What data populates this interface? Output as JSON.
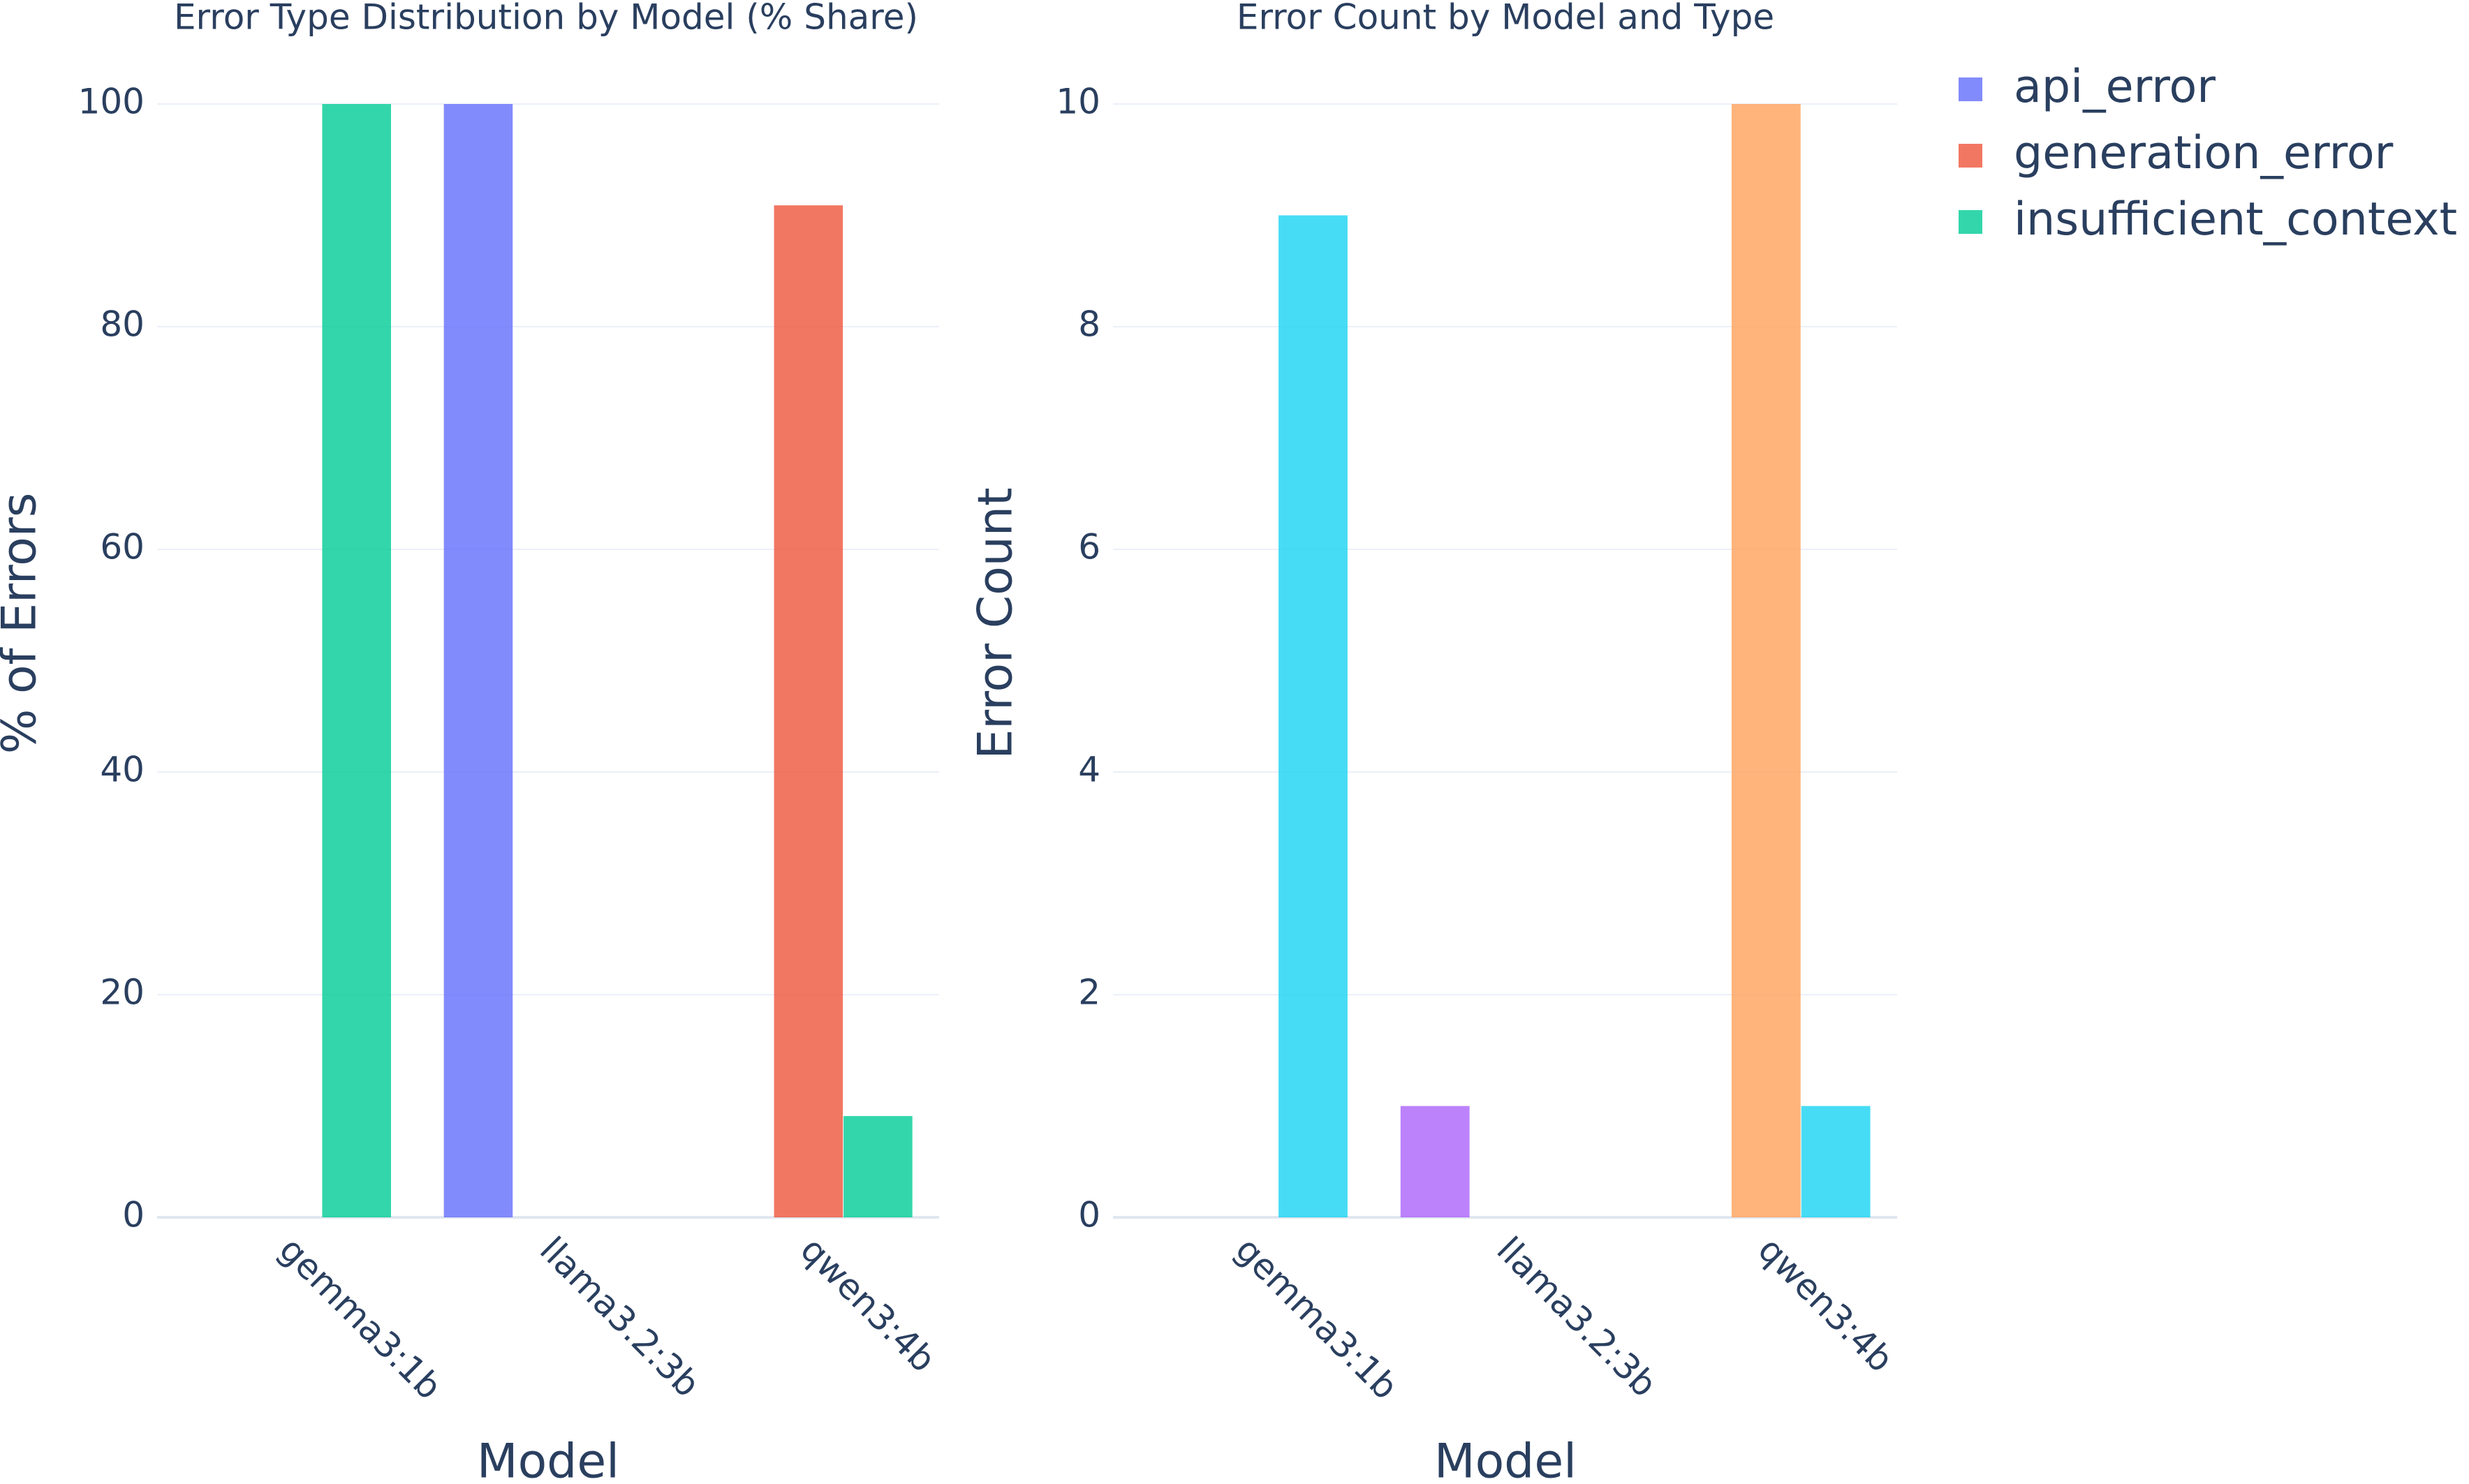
{
  "chart_data": [
    {
      "type": "bar",
      "title": "Error Type Distribution by Model (% Share)",
      "xlabel": "Model",
      "ylabel": "% of Errors",
      "categories": [
        "gemma3:1b",
        "llama3.2:3b",
        "qwen3:4b"
      ],
      "ylim": [
        0,
        100
      ],
      "yticks": [
        0,
        20,
        40,
        60,
        80,
        100
      ],
      "grid": true,
      "series": [
        {
          "name": "api_error",
          "color": "#636efa",
          "values": [
            0,
            100,
            0
          ]
        },
        {
          "name": "generation_error",
          "color": "#ef553b",
          "values": [
            0,
            0,
            90.9
          ]
        },
        {
          "name": "insufficient_context",
          "color": "#00cc96",
          "values": [
            100,
            0,
            9.1
          ]
        }
      ]
    },
    {
      "type": "bar",
      "title": "Error Count by Model and Type",
      "xlabel": "Model",
      "ylabel": "Error Count",
      "categories": [
        "gemma3:1b",
        "llama3.2:3b",
        "qwen3:4b"
      ],
      "ylim": [
        0,
        10
      ],
      "yticks": [
        0,
        2,
        4,
        6,
        8,
        10
      ],
      "grid": true,
      "series": [
        {
          "name": "api_error",
          "color": "#ab63fa",
          "values": [
            0,
            1,
            0
          ]
        },
        {
          "name": "generation_error",
          "color": "#ffa15a",
          "values": [
            0,
            0,
            10
          ]
        },
        {
          "name": "insufficient_context",
          "color": "#19d3f3",
          "values": [
            9,
            0,
            1
          ]
        }
      ]
    }
  ],
  "legend": {
    "placement": "top-right",
    "items": [
      {
        "label": "api_error",
        "color": "#636efa"
      },
      {
        "label": "generation_error",
        "color": "#ef553b"
      },
      {
        "label": "insufficient_context",
        "color": "#00cc96"
      }
    ]
  }
}
